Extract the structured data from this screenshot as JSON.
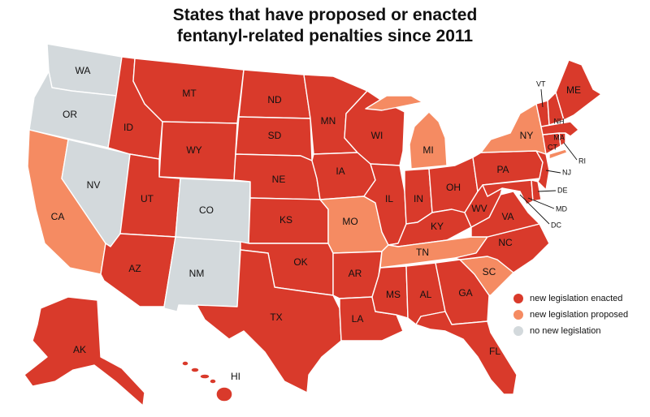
{
  "title": {
    "line1": "States that have proposed or enacted",
    "line2": "fentanyl-related penalties since 2011"
  },
  "colors": {
    "enacted": "#d93a2b",
    "proposed": "#f58b62",
    "none": "#d3d9dc"
  },
  "legend": [
    {
      "key": "enacted",
      "label": "new legislation enacted"
    },
    {
      "key": "proposed",
      "label": "new legislation proposed"
    },
    {
      "key": "none",
      "label": "no new legislation"
    }
  ],
  "states": [
    {
      "abbr": "WA",
      "status": "none"
    },
    {
      "abbr": "OR",
      "status": "none"
    },
    {
      "abbr": "CA",
      "status": "proposed"
    },
    {
      "abbr": "NV",
      "status": "none"
    },
    {
      "abbr": "ID",
      "status": "enacted"
    },
    {
      "abbr": "MT",
      "status": "enacted"
    },
    {
      "abbr": "WY",
      "status": "enacted"
    },
    {
      "abbr": "UT",
      "status": "enacted"
    },
    {
      "abbr": "AZ",
      "status": "enacted"
    },
    {
      "abbr": "CO",
      "status": "none"
    },
    {
      "abbr": "NM",
      "status": "none"
    },
    {
      "abbr": "ND",
      "status": "enacted"
    },
    {
      "abbr": "SD",
      "status": "enacted"
    },
    {
      "abbr": "NE",
      "status": "enacted"
    },
    {
      "abbr": "KS",
      "status": "enacted"
    },
    {
      "abbr": "OK",
      "status": "enacted"
    },
    {
      "abbr": "TX",
      "status": "enacted"
    },
    {
      "abbr": "MN",
      "status": "enacted"
    },
    {
      "abbr": "IA",
      "status": "enacted"
    },
    {
      "abbr": "MO",
      "status": "proposed"
    },
    {
      "abbr": "AR",
      "status": "enacted"
    },
    {
      "abbr": "LA",
      "status": "enacted"
    },
    {
      "abbr": "WI",
      "status": "enacted"
    },
    {
      "abbr": "IL",
      "status": "enacted"
    },
    {
      "abbr": "MI",
      "status": "proposed"
    },
    {
      "abbr": "IN",
      "status": "enacted"
    },
    {
      "abbr": "OH",
      "status": "enacted"
    },
    {
      "abbr": "KY",
      "status": "enacted"
    },
    {
      "abbr": "TN",
      "status": "proposed"
    },
    {
      "abbr": "MS",
      "status": "enacted"
    },
    {
      "abbr": "AL",
      "status": "enacted"
    },
    {
      "abbr": "GA",
      "status": "enacted"
    },
    {
      "abbr": "FL",
      "status": "enacted"
    },
    {
      "abbr": "SC",
      "status": "proposed"
    },
    {
      "abbr": "NC",
      "status": "enacted"
    },
    {
      "abbr": "VA",
      "status": "enacted"
    },
    {
      "abbr": "WV",
      "status": "enacted"
    },
    {
      "abbr": "PA",
      "status": "enacted"
    },
    {
      "abbr": "NY",
      "status": "proposed"
    },
    {
      "abbr": "VT",
      "status": "enacted"
    },
    {
      "abbr": "NH",
      "status": "enacted"
    },
    {
      "abbr": "ME",
      "status": "enacted"
    },
    {
      "abbr": "MA",
      "status": "enacted"
    },
    {
      "abbr": "RI",
      "status": "enacted"
    },
    {
      "abbr": "CT",
      "status": "enacted"
    },
    {
      "abbr": "NJ",
      "status": "enacted"
    },
    {
      "abbr": "DE",
      "status": "enacted"
    },
    {
      "abbr": "MD",
      "status": "enacted"
    },
    {
      "abbr": "DC",
      "status": "enacted"
    },
    {
      "abbr": "AK",
      "status": "enacted"
    },
    {
      "abbr": "HI",
      "status": "enacted"
    }
  ]
}
